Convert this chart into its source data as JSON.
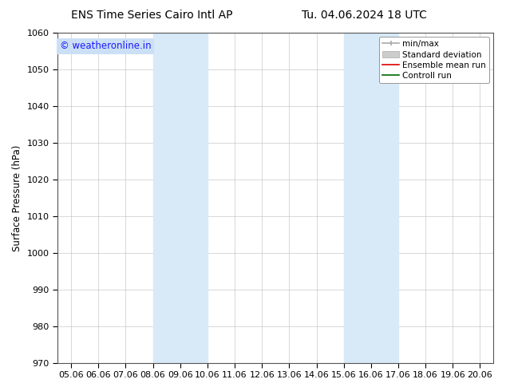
{
  "title_left": "ENS Time Series Cairo Intl AP",
  "title_right": "Tu. 04.06.2024 18 UTC",
  "ylabel": "Surface Pressure (hPa)",
  "ylim": [
    970,
    1060
  ],
  "yticks": [
    970,
    980,
    990,
    1000,
    1010,
    1020,
    1030,
    1040,
    1050,
    1060
  ],
  "xtick_labels": [
    "05.06",
    "06.06",
    "07.06",
    "08.06",
    "09.06",
    "10.06",
    "11.06",
    "12.06",
    "13.06",
    "14.06",
    "15.06",
    "16.06",
    "17.06",
    "18.06",
    "19.06",
    "20.06"
  ],
  "xtick_positions": [
    0,
    1,
    2,
    3,
    4,
    5,
    6,
    7,
    8,
    9,
    10,
    11,
    12,
    13,
    14,
    15
  ],
  "shaded_regions": [
    {
      "xstart": 3,
      "xend": 5,
      "color": "#d8eaf8"
    },
    {
      "xstart": 10,
      "xend": 12,
      "color": "#d8eaf8"
    }
  ],
  "watermark_text": "© weatheronline.in",
  "watermark_color": "#1a1aff",
  "watermark_bg": "#cce0f5",
  "background_color": "#ffffff",
  "plot_bg_color": "#ffffff",
  "grid_color": "#bbbbbb",
  "title_fontsize": 10,
  "label_fontsize": 8.5,
  "tick_fontsize": 8,
  "legend_fontsize": 7.5
}
